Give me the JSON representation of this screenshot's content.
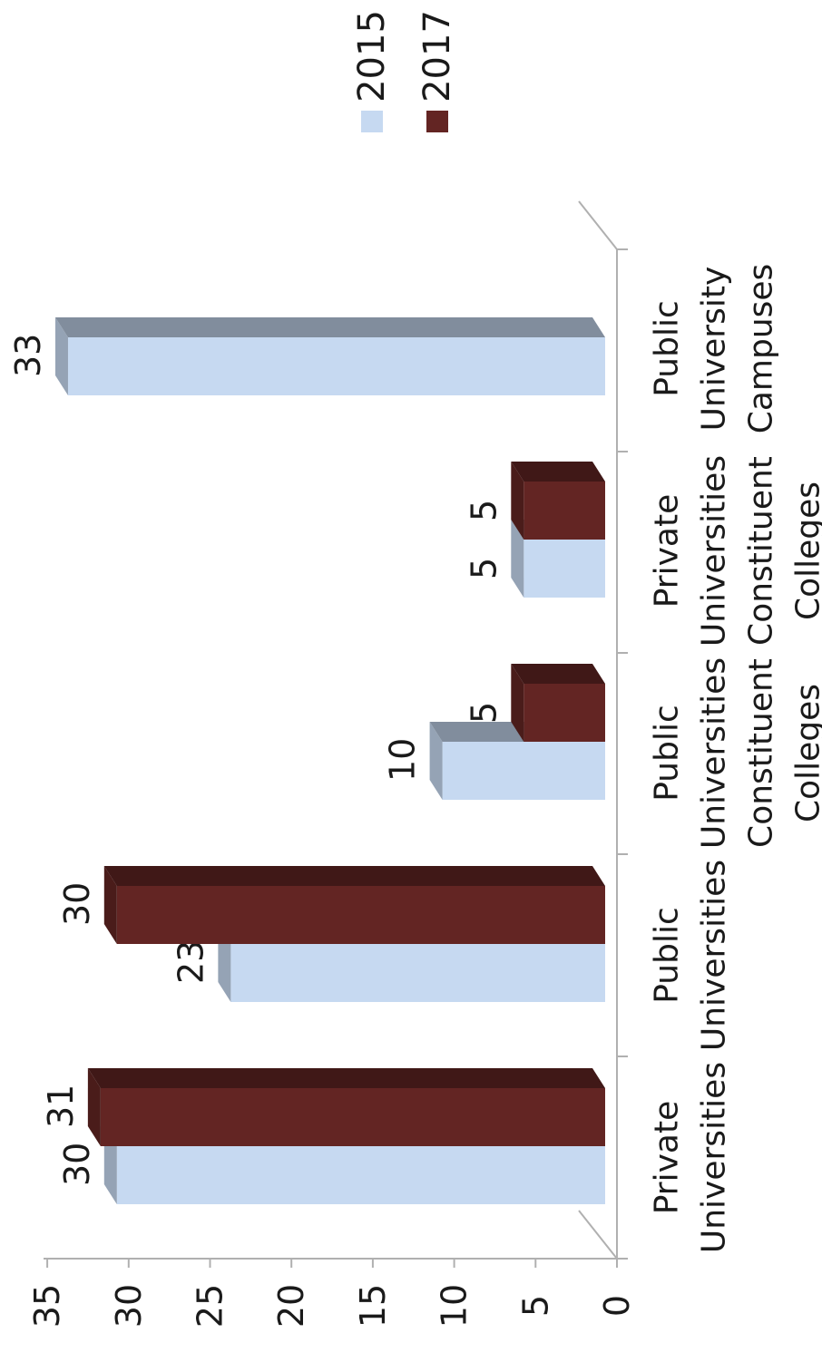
{
  "chart_data": {
    "type": "bar",
    "orientation": "horizontal-3d",
    "categories": [
      [
        "Private",
        "Universities"
      ],
      [
        "Public",
        "Universities"
      ],
      [
        "Public",
        "Universities",
        "Constituent",
        "Colleges"
      ],
      [
        "Private",
        "Universities",
        "Constituent",
        "Colleges"
      ],
      [
        "Public",
        "University",
        "Campuses"
      ]
    ],
    "series": [
      {
        "name": "2015",
        "color": "#c6d9f1",
        "values": [
          30,
          23,
          10,
          5,
          33
        ]
      },
      {
        "name": "2017",
        "color": "#632523",
        "values": [
          31,
          30,
          5,
          5,
          null
        ]
      }
    ],
    "value_axis": {
      "min": 0,
      "max": 35,
      "step": 5,
      "tick_labels": [
        "0",
        "5",
        "10",
        "15",
        "20",
        "25",
        "30",
        "35"
      ]
    },
    "data_labels": true,
    "grid": false,
    "legend_position": "top-right",
    "title": "",
    "xlabel": "",
    "ylabel": ""
  }
}
